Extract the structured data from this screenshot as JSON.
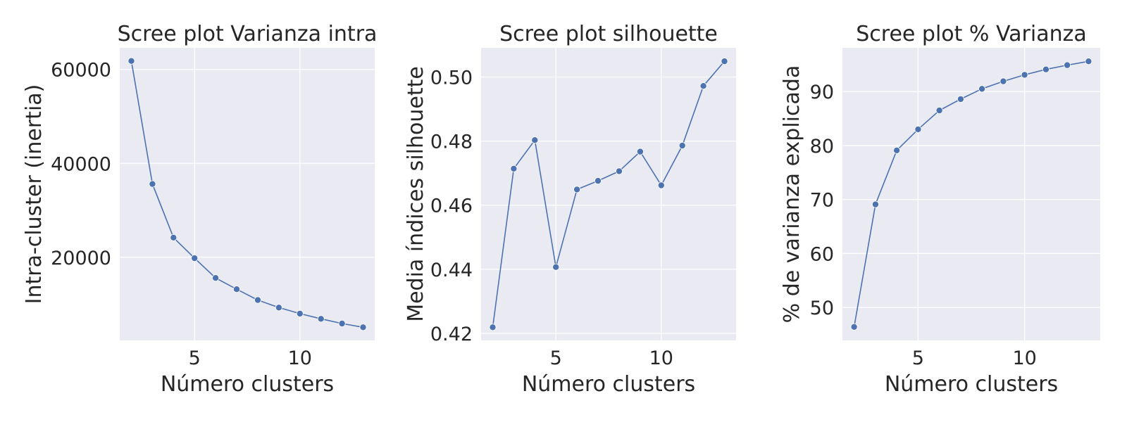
{
  "chart_data": [
    {
      "type": "line",
      "title": "Scree plot Varianza intra",
      "xlabel": "Número clusters",
      "ylabel": "Intra-cluster (inertia)",
      "x": [
        2,
        3,
        4,
        5,
        6,
        7,
        8,
        9,
        10,
        11,
        12,
        13
      ],
      "y": [
        61800,
        35600,
        24200,
        19800,
        15600,
        13200,
        10900,
        9300,
        8000,
        6900,
        5900,
        5100
      ],
      "xlim": [
        1.45,
        13.55
      ],
      "ylim": [
        2300,
        64600
      ],
      "xticks": [
        5,
        10
      ],
      "xtick_labels": [
        "5",
        "10"
      ],
      "yticks": [
        20000,
        40000,
        60000
      ],
      "ytick_labels": [
        "20000",
        "40000",
        "60000"
      ],
      "grid": true,
      "color": "#4c72b0",
      "marker": "circle"
    },
    {
      "type": "line",
      "title": "Scree plot silhouette",
      "xlabel": "Número clusters",
      "ylabel": "Media índices silhouette",
      "x": [
        2,
        3,
        4,
        5,
        6,
        7,
        8,
        9,
        10,
        11,
        12,
        13
      ],
      "y": [
        0.4219,
        0.4714,
        0.4803,
        0.4407,
        0.4649,
        0.4676,
        0.4706,
        0.4767,
        0.4662,
        0.4786,
        0.4972,
        0.5049
      ],
      "xlim": [
        1.45,
        13.55
      ],
      "ylim": [
        0.4178,
        0.5091
      ],
      "xticks": [
        5,
        10
      ],
      "xtick_labels": [
        "5",
        "10"
      ],
      "yticks": [
        0.42,
        0.44,
        0.46,
        0.48,
        0.5
      ],
      "ytick_labels": [
        "0.42",
        "0.44",
        "0.46",
        "0.48",
        "0.50"
      ],
      "grid": true,
      "color": "#4c72b0",
      "marker": "circle"
    },
    {
      "type": "line",
      "title": "Scree plot % Varianza",
      "xlabel": "Número clusters",
      "ylabel": "% de varianza explicada",
      "x": [
        2,
        3,
        4,
        5,
        6,
        7,
        8,
        9,
        10,
        11,
        12,
        13
      ],
      "y": [
        46.4,
        69.1,
        79.1,
        83.0,
        86.5,
        88.6,
        90.5,
        91.9,
        93.1,
        94.1,
        94.9,
        95.6
      ],
      "xlim": [
        1.45,
        13.55
      ],
      "ylim": [
        43.9,
        98.1
      ],
      "xticks": [
        5,
        10
      ],
      "xtick_labels": [
        "5",
        "10"
      ],
      "yticks": [
        50,
        60,
        70,
        80,
        90
      ],
      "ytick_labels": [
        "50",
        "60",
        "70",
        "80",
        "90"
      ],
      "grid": true,
      "color": "#4c72b0",
      "marker": "circle"
    }
  ]
}
